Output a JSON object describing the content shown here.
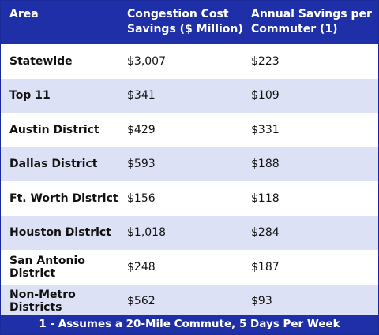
{
  "table": {
    "header": [
      "Area",
      "Congestion Cost Savings ($ Million)",
      "Annual Savings per Commuter (1)"
    ],
    "rows": [
      [
        "Statewide",
        "$3,007",
        "$223"
      ],
      [
        "Top 11",
        "$341",
        "$109"
      ],
      [
        "Austin District",
        "$429",
        "$331"
      ],
      [
        "Dallas District",
        "$593",
        "$188"
      ],
      [
        "Ft. Worth District",
        "$156",
        "$118"
      ],
      [
        "Houston District",
        "$1,018",
        "$284"
      ],
      [
        "San Antonio District",
        "$248",
        "$187"
      ],
      [
        "Non-Metro Districts",
        "$562",
        "$93"
      ]
    ],
    "footnote": "1 - Assumes a 20-Mile Commute, 5 Days Per Week"
  }
}
